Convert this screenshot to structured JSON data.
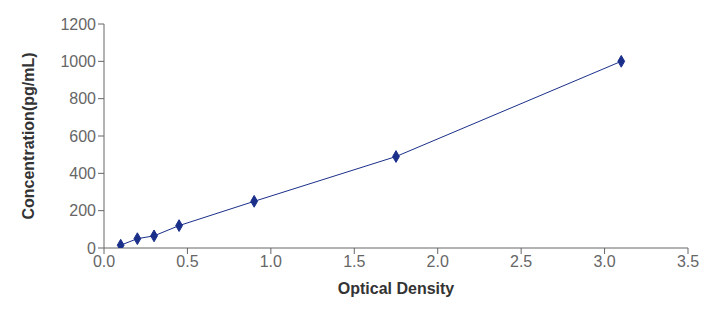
{
  "chart_data": {
    "type": "line",
    "x": [
      0.1,
      0.2,
      0.3,
      0.45,
      0.9,
      1.75,
      3.1
    ],
    "values": [
      15,
      50,
      65,
      120,
      250,
      490,
      1000
    ],
    "color": "#1a2f8a",
    "marker": "diamond",
    "line_style": "solid",
    "xlabel": "Optical Density",
    "ylabel": "Concentration(pg/mL)",
    "xlim": [
      0,
      3.5
    ],
    "ylim": [
      0,
      1200
    ],
    "xticks": [
      {
        "value": 0,
        "label": "0.0"
      },
      0.5,
      {
        "value": 1.0,
        "label": "1.0"
      },
      1.5,
      {
        "value": 2.0,
        "label": "2.0"
      },
      2.5,
      {
        "value": 3.0,
        "label": "3.0"
      },
      3.5
    ],
    "yticks": [
      0,
      200,
      400,
      600,
      800,
      1000,
      1200
    ],
    "grid": false
  }
}
